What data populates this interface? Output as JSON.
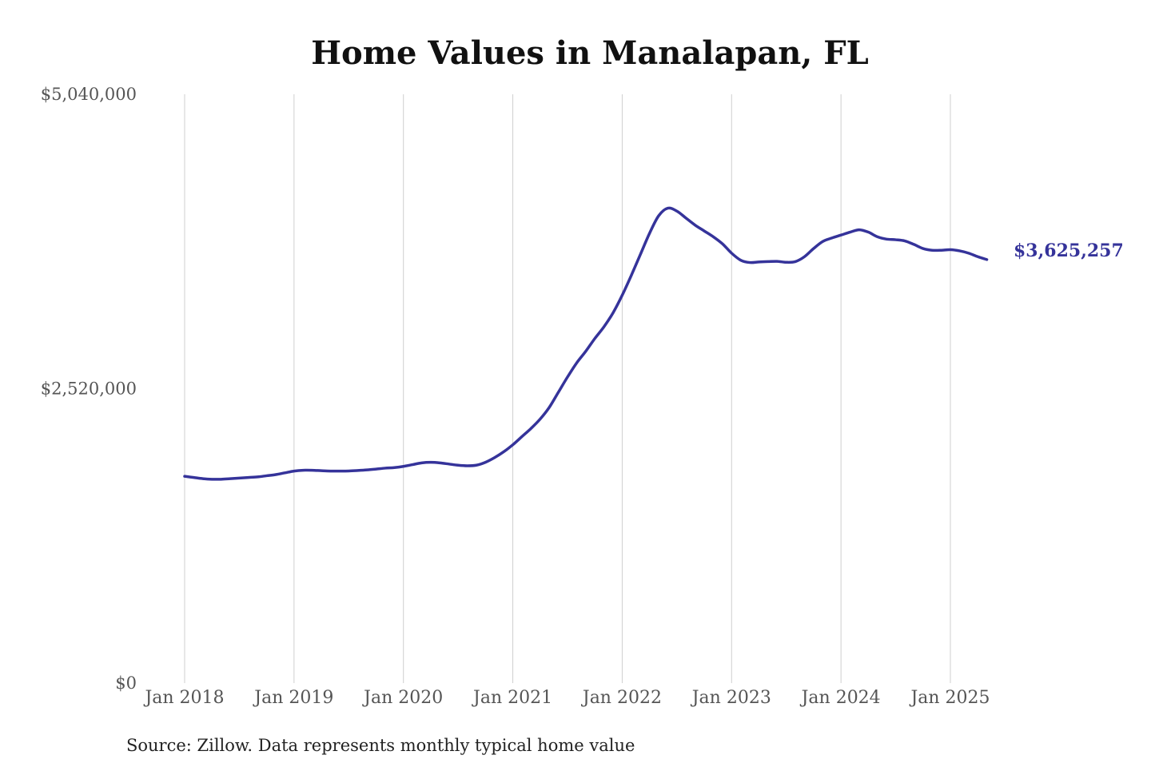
{
  "colors": {
    "line": "#35339a",
    "grid": "#cfcfcf",
    "background": "#ffffff"
  },
  "footer": {
    "source": "Source: Zillow. Data represents monthly typical home value"
  },
  "chart_data": {
    "type": "line",
    "title": "Home Values in Manalapan, FL",
    "xlabel": "",
    "ylabel": "",
    "ylim": [
      0,
      5040000
    ],
    "y_ticks": [
      {
        "value": 0,
        "label": "$0"
      },
      {
        "value": 2520000,
        "label": "$2,520,000"
      },
      {
        "value": 5040000,
        "label": "$5,040,000"
      }
    ],
    "x_ticks": [
      {
        "value": "2018-01",
        "label": "Jan 2018"
      },
      {
        "value": "2019-01",
        "label": "Jan 2019"
      },
      {
        "value": "2020-01",
        "label": "Jan 2020"
      },
      {
        "value": "2021-01",
        "label": "Jan 2021"
      },
      {
        "value": "2022-01",
        "label": "Jan 2022"
      },
      {
        "value": "2023-01",
        "label": "Jan 2023"
      },
      {
        "value": "2024-01",
        "label": "Jan 2024"
      },
      {
        "value": "2025-01",
        "label": "Jan 2025"
      }
    ],
    "grid": {
      "vertical": true,
      "horizontal": false
    },
    "end_label": "$3,625,257",
    "series": [
      {
        "name": "",
        "points": [
          [
            "2018-01",
            1770000
          ],
          [
            "2018-02",
            1760000
          ],
          [
            "2018-03",
            1750000
          ],
          [
            "2018-04",
            1745000
          ],
          [
            "2018-05",
            1745000
          ],
          [
            "2018-06",
            1750000
          ],
          [
            "2018-07",
            1755000
          ],
          [
            "2018-08",
            1760000
          ],
          [
            "2018-09",
            1765000
          ],
          [
            "2018-10",
            1775000
          ],
          [
            "2018-11",
            1785000
          ],
          [
            "2018-12",
            1800000
          ],
          [
            "2019-01",
            1815000
          ],
          [
            "2019-02",
            1822000
          ],
          [
            "2019-03",
            1822000
          ],
          [
            "2019-04",
            1818000
          ],
          [
            "2019-05",
            1815000
          ],
          [
            "2019-06",
            1815000
          ],
          [
            "2019-07",
            1816000
          ],
          [
            "2019-08",
            1820000
          ],
          [
            "2019-09",
            1825000
          ],
          [
            "2019-10",
            1832000
          ],
          [
            "2019-11",
            1840000
          ],
          [
            "2019-12",
            1845000
          ],
          [
            "2020-01",
            1855000
          ],
          [
            "2020-02",
            1870000
          ],
          [
            "2020-03",
            1885000
          ],
          [
            "2020-04",
            1890000
          ],
          [
            "2020-05",
            1885000
          ],
          [
            "2020-06",
            1875000
          ],
          [
            "2020-07",
            1865000
          ],
          [
            "2020-08",
            1860000
          ],
          [
            "2020-09",
            1865000
          ],
          [
            "2020-10",
            1890000
          ],
          [
            "2020-11",
            1930000
          ],
          [
            "2020-12",
            1980000
          ],
          [
            "2021-01",
            2040000
          ],
          [
            "2021-02",
            2110000
          ],
          [
            "2021-03",
            2180000
          ],
          [
            "2021-04",
            2260000
          ],
          [
            "2021-05",
            2360000
          ],
          [
            "2021-06",
            2490000
          ],
          [
            "2021-07",
            2620000
          ],
          [
            "2021-08",
            2740000
          ],
          [
            "2021-09",
            2840000
          ],
          [
            "2021-10",
            2950000
          ],
          [
            "2021-11",
            3050000
          ],
          [
            "2021-12",
            3170000
          ],
          [
            "2022-01",
            3320000
          ],
          [
            "2022-02",
            3490000
          ],
          [
            "2022-03",
            3670000
          ],
          [
            "2022-04",
            3850000
          ],
          [
            "2022-05",
            4000000
          ],
          [
            "2022-06",
            4065000
          ],
          [
            "2022-07",
            4040000
          ],
          [
            "2022-08",
            3980000
          ],
          [
            "2022-09",
            3920000
          ],
          [
            "2022-10",
            3870000
          ],
          [
            "2022-11",
            3820000
          ],
          [
            "2022-12",
            3760000
          ],
          [
            "2023-01",
            3680000
          ],
          [
            "2023-02",
            3620000
          ],
          [
            "2023-03",
            3600000
          ],
          [
            "2023-04",
            3605000
          ],
          [
            "2023-05",
            3608000
          ],
          [
            "2023-06",
            3610000
          ],
          [
            "2023-07",
            3602000
          ],
          [
            "2023-08",
            3608000
          ],
          [
            "2023-09",
            3650000
          ],
          [
            "2023-10",
            3720000
          ],
          [
            "2023-11",
            3780000
          ],
          [
            "2023-12",
            3810000
          ],
          [
            "2024-01",
            3835000
          ],
          [
            "2024-02",
            3860000
          ],
          [
            "2024-03",
            3880000
          ],
          [
            "2024-04",
            3860000
          ],
          [
            "2024-05",
            3820000
          ],
          [
            "2024-06",
            3800000
          ],
          [
            "2024-07",
            3795000
          ],
          [
            "2024-08",
            3785000
          ],
          [
            "2024-09",
            3755000
          ],
          [
            "2024-10",
            3720000
          ],
          [
            "2024-11",
            3705000
          ],
          [
            "2024-12",
            3705000
          ],
          [
            "2025-01",
            3710000
          ],
          [
            "2025-02",
            3700000
          ],
          [
            "2025-03",
            3680000
          ],
          [
            "2025-04",
            3650000
          ],
          [
            "2025-05",
            3625257
          ]
        ]
      }
    ]
  }
}
